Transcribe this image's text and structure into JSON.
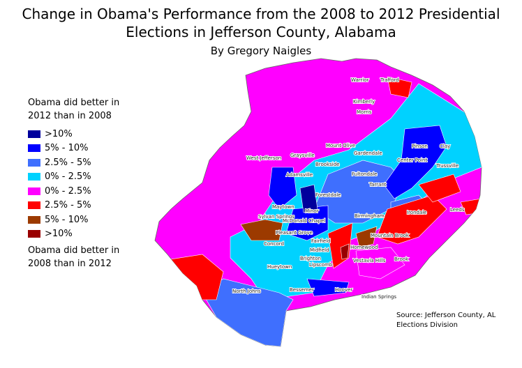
{
  "title_line1": "Change in Obama's Performance from the 2008 to 2012 Presidential",
  "title_line2": "Elections in Jefferson County, Alabama",
  "subtitle": "By Gregory Naigles",
  "legend": {
    "header": "Obama did better in 2012 than in 2008",
    "footer": "Obama did better in 2008 than in 2012",
    "items": [
      {
        "label": ">10%",
        "color": "#00009c"
      },
      {
        "label": "5% - 10%",
        "color": "#0000ff"
      },
      {
        "label": "2.5% - 5%",
        "color": "#3f6ffe"
      },
      {
        "label": "0% - 2.5%",
        "color": "#00d2ff"
      },
      {
        "label": "0% - 2.5%",
        "color": "#ff00ff"
      },
      {
        "label": "2.5% - 5%",
        "color": "#ff0000"
      },
      {
        "label": "5% - 10%",
        "color": "#9c3a00"
      },
      {
        "label": ">10%",
        "color": "#990000"
      }
    ]
  },
  "places": [
    "Warrior",
    "Trafford",
    "Kimberly",
    "Morris",
    "Pinson",
    "Clay",
    "Mount Olive",
    "Gardendale",
    "Graysville",
    "West Jefferson",
    "Brookside",
    "Center Point",
    "Trussville",
    "Adamsville",
    "Fultondale",
    "Tarrant",
    "Forestdale",
    "Maytown",
    "Minor",
    "Sylvan Springs",
    "McDonald Chapel",
    "Birmingham",
    "Irondale",
    "Leeds",
    "Pleasant Grove",
    "Mountain Brook",
    "Concord",
    "Fairfield",
    "Midfield",
    "Homewood",
    "Brighton",
    "Lipscomb",
    "Vestavia Hills",
    "Brook",
    "Hueytown",
    "North Johns",
    "Bessemer",
    "Hoover",
    "Indian Springs"
  ],
  "source": [
    "Source: Jefferson County, AL",
    "Elections Division"
  ]
}
